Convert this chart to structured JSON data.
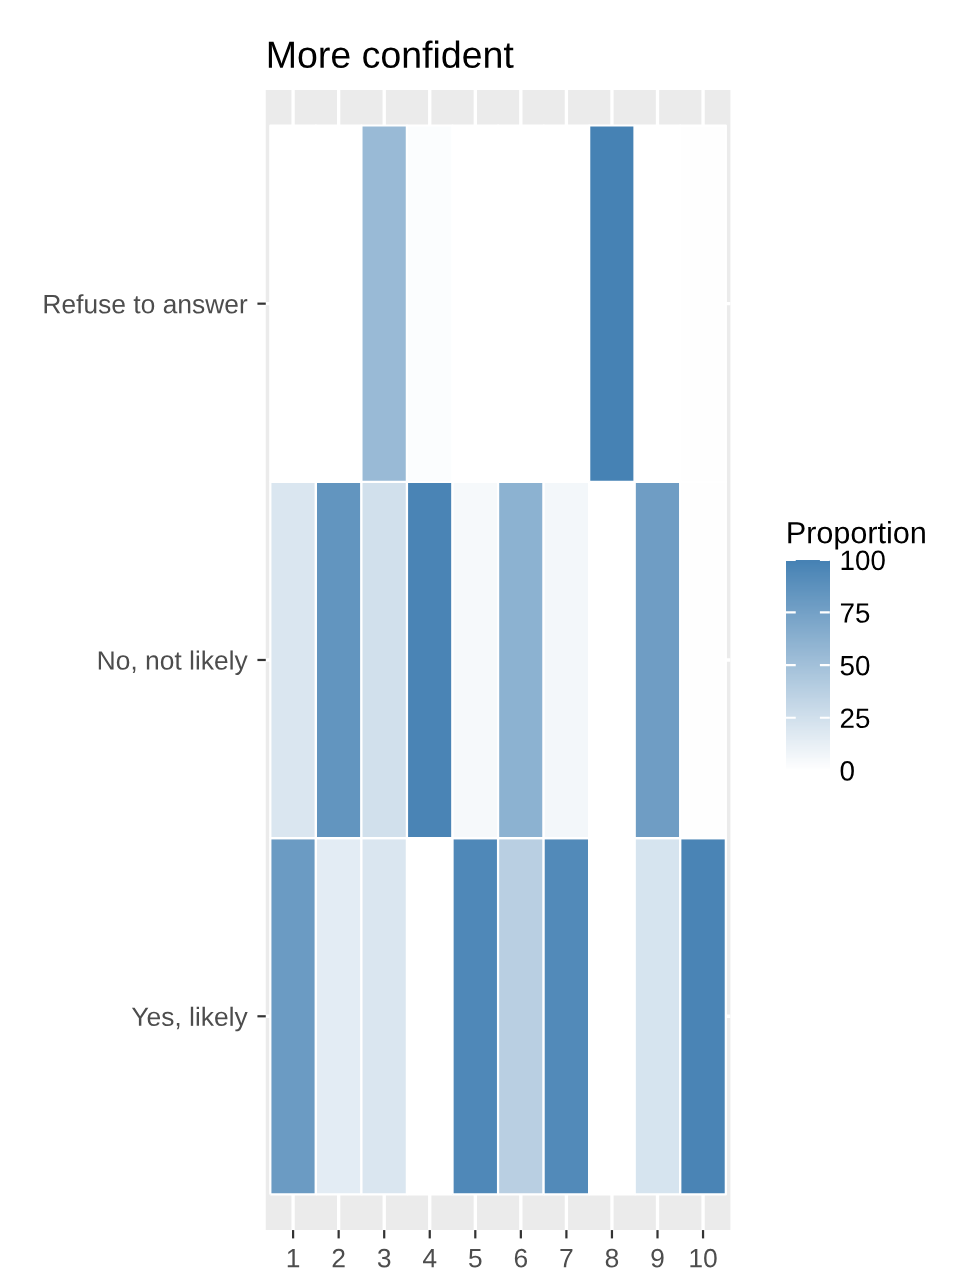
{
  "chart_data": {
    "type": "heatmap",
    "title": "More confident",
    "clabel": "Proportion",
    "categories": [
      "1",
      "2",
      "3",
      "4",
      "5",
      "6",
      "7",
      "8",
      "9",
      "10"
    ],
    "y_categories": [
      "Refuse to answer",
      "No, not likely",
      "Yes, likely"
    ],
    "cells": [
      [
        0,
        0,
        55,
        2,
        0,
        0,
        0,
        100,
        0,
        1
      ],
      [
        20,
        85,
        25,
        98,
        5,
        62,
        7,
        0,
        78,
        1
      ],
      [
        80,
        15,
        20,
        0,
        95,
        38,
        93,
        0,
        22,
        98
      ]
    ],
    "clim": [
      0,
      100
    ],
    "cticks": [
      0,
      25,
      50,
      75,
      100
    ],
    "colors": [
      "#ffffff",
      "#4682b4"
    ],
    "grid": true
  }
}
